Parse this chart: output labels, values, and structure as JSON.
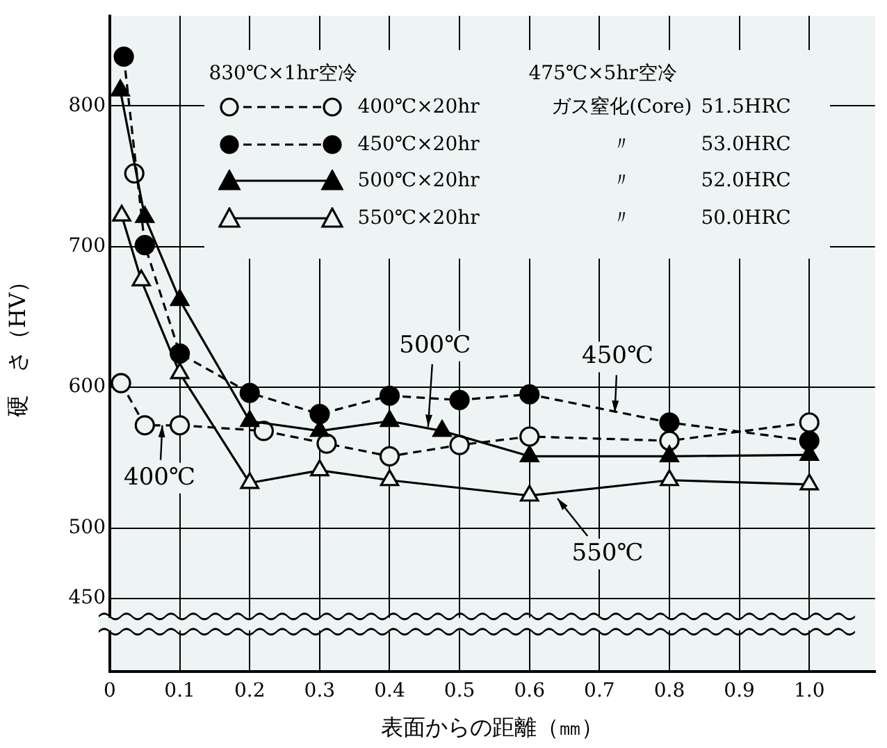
{
  "chart_data": {
    "type": "line",
    "xlabel": "表面からの距離（㎜）",
    "ylabel": "硬　さ（HV）",
    "xlim": [
      0,
      1.094
    ],
    "ylim": [
      398,
      864
    ],
    "xticks": [
      0,
      0.1,
      0.2,
      0.3,
      0.4,
      0.5,
      0.6,
      0.7,
      0.8,
      0.9,
      {
        "value": 1,
        "label": "1.0"
      }
    ],
    "yticks": [
      450,
      500,
      600,
      700,
      800
    ],
    "grid": true,
    "legend": "top",
    "series": [
      {
        "name": "400℃×20hr",
        "color": "#000000",
        "marker": "circle",
        "line_style": "dashed",
        "x": [
          0.035,
          0.025,
          0.016,
          0.05,
          0.1,
          0.22,
          0.31,
          0.4,
          0.5,
          0.6,
          0.8,
          1.0
        ],
        "values": [
          752,
          null,
          603,
          573,
          573,
          569,
          560,
          551,
          559,
          565,
          562,
          575
        ]
      },
      {
        "name": "450℃×20hr",
        "color": "#000000",
        "marker": "circle",
        "line_style": "dashed",
        "x": [
          0.02,
          0.05,
          0.1,
          0.2,
          0.3,
          0.4,
          0.5,
          0.6,
          0.8,
          1.0
        ],
        "values": [
          835,
          701,
          624,
          596,
          581,
          594,
          591,
          595,
          575,
          562
        ]
      },
      {
        "name": "500℃×20hr",
        "color": "#000000",
        "marker": "triangle",
        "line_style": "solid",
        "x": [
          0.015,
          0.05,
          0.1,
          0.2,
          0.3,
          0.4,
          0.475,
          0.6,
          0.8,
          1.0
        ],
        "values": [
          811,
          721,
          662,
          576,
          569,
          576,
          569,
          551,
          551,
          552
        ]
      },
      {
        "name": "550℃×20hr",
        "color": "#000000",
        "marker": "triangle",
        "line_style": "solid",
        "x": [
          0.017,
          0.045,
          0.1,
          0.2,
          0.3,
          0.4,
          0.6,
          0.8,
          1.0
        ],
        "values": [
          722,
          676,
          610,
          532,
          541,
          534,
          523,
          534,
          531
        ]
      }
    ],
    "annotations": [
      "830℃×1hr空冷",
      "475℃×5hr空冷",
      "ガス窒化(Core)",
      "〃",
      "〃",
      "〃",
      "51.5HRC",
      "53.0HRC",
      "52.0HRC",
      "50.0HRC",
      {
        "text": "500℃",
        "x": 0.455,
        "y": 572
      },
      {
        "text": "450℃",
        "x": 0.722,
        "y": 582
      },
      {
        "text": "400℃",
        "x": 0.075,
        "y": 573
      },
      {
        "text": "550℃",
        "x": 0.64,
        "y": 521
      }
    ]
  }
}
